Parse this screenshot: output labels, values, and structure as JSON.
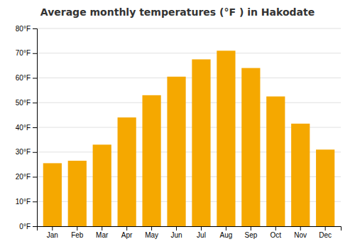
{
  "chart_data": {
    "type": "bar",
    "title": "Average monthly temperatures (°F ) in Hakodate",
    "categories": [
      "Jan",
      "Feb",
      "Mar",
      "Apr",
      "May",
      "Jun",
      "Jul",
      "Aug",
      "Sep",
      "Oct",
      "Nov",
      "Dec"
    ],
    "values": [
      25.5,
      26.5,
      33,
      44,
      53,
      60.5,
      67.5,
      71,
      64,
      52.5,
      41.5,
      31
    ],
    "color": "#F5A800",
    "ylim": [
      0,
      80
    ],
    "yticks": [
      {
        "value": 0,
        "label": "0°F"
      },
      {
        "value": 10,
        "label": "10°F"
      },
      {
        "value": 20,
        "label": "20°F"
      },
      {
        "value": 30,
        "label": "30°F"
      },
      {
        "value": 40,
        "label": "40°F"
      },
      {
        "value": 50,
        "label": "50°F"
      },
      {
        "value": 60,
        "label": "60°F"
      },
      {
        "value": 70,
        "label": "70°F"
      },
      {
        "value": 80,
        "label": "80°F"
      }
    ],
    "grid": true
  }
}
